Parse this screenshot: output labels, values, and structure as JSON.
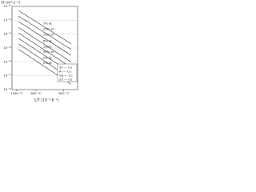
{
  "chart_data": {
    "type": "line",
    "y_label": "D (m²·s⁻¹)",
    "x_label": "1/T (10⁻³ K⁻¹)",
    "log_y": true,
    "grid": true,
    "xlim": [
      0.75,
      1.25
    ],
    "ylim": [
      1e-16,
      1e-10
    ],
    "yticks": [
      {
        "value": 1e-10,
        "label": "10⁻¹⁰"
      },
      {
        "value": 1e-11,
        "label": "10⁻¹¹"
      },
      {
        "value": 1e-12,
        "label": "10⁻¹²"
      },
      {
        "value": 1e-13,
        "label": "10⁻¹³"
      },
      {
        "value": 1e-14,
        "label": "10⁻¹⁴"
      },
      {
        "value": 1e-15,
        "label": "10⁻¹⁵"
      },
      {
        "value": 1e-16,
        "label": "10⁻¹⁶"
      }
    ],
    "temperatures": [
      {
        "text": "1000 °C",
        "x": 0.786
      },
      {
        "text": "800 °C",
        "x": 0.932
      },
      {
        "text": "600 °C",
        "x": 1.145
      }
    ],
    "systems": [
      "Sn — Cu",
      "Al — Cu",
      "Ga — Cu",
      "Zn — Cu"
    ],
    "x": [
      0.8,
      1.2
    ],
    "series": [
      {
        "name": "7% at",
        "color": "#333333",
        "values": [
          5e-11,
          2e-13
        ]
      },
      {
        "name": "15% at",
        "color": "#333333",
        "values": [
          2e-11,
          8e-14
        ]
      },
      {
        "name": "12% at",
        "color": "#333333",
        "values": [
          8e-12,
          3e-14
        ]
      },
      {
        "name": "6% at",
        "color": "#333333",
        "values": [
          3e-12,
          1e-14
        ]
      },
      {
        "name": "100%",
        "color": "#333333",
        "values": [
          1.2e-12,
          4e-15
        ]
      },
      {
        "name": "50% at",
        "color": "#333333",
        "values": [
          5e-13,
          1.6e-15
        ]
      },
      {
        "name": "5% at",
        "color": "#333333",
        "values": [
          2e-13,
          6e-16
        ]
      },
      {
        "name": "2% at",
        "color": "#333333",
        "values": [
          8e-14,
          2.5e-16
        ]
      }
    ]
  }
}
